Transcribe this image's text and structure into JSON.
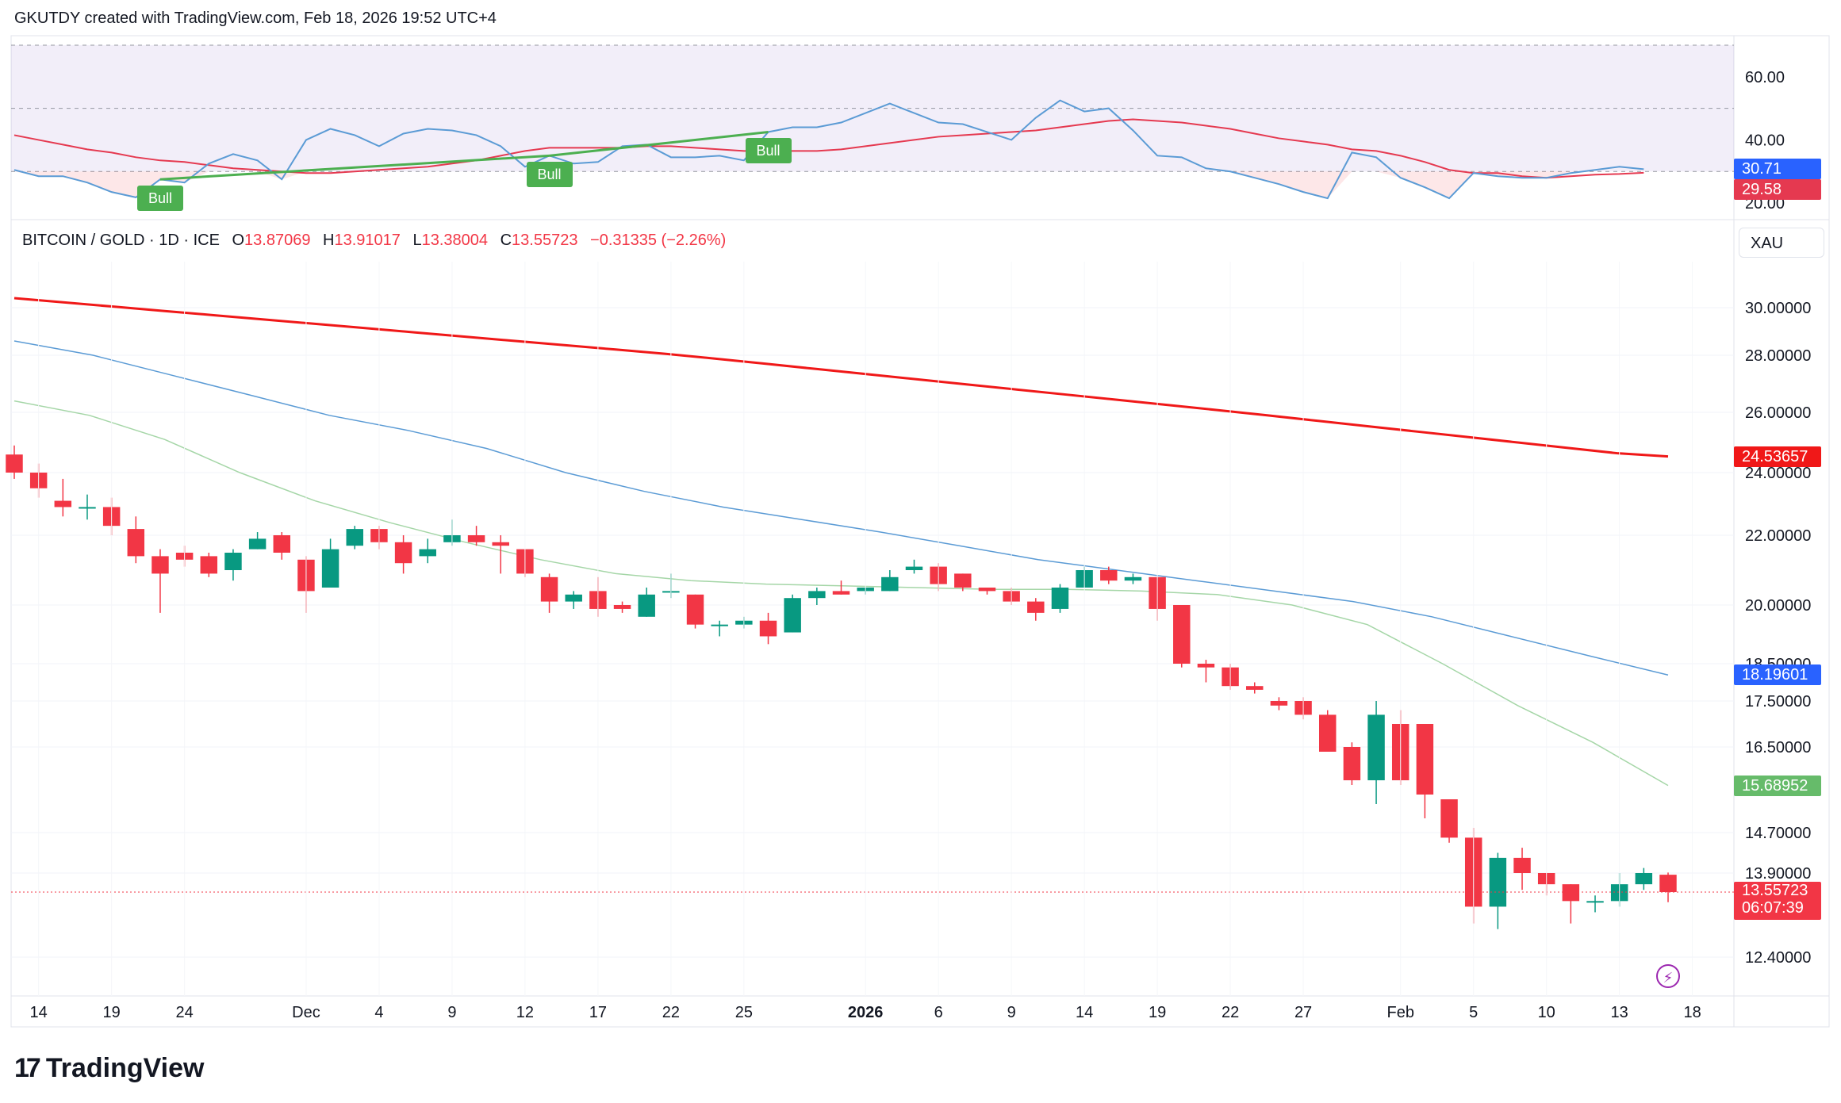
{
  "header": {
    "credit": "GKUTDY created with TradingView.com, Feb 18, 2026 19:52 UTC+4"
  },
  "ohlc": {
    "symbol": "BITCOIN / GOLD · 1D · ICE",
    "o_label": "O",
    "o": "13.87069",
    "h_label": "H",
    "h": "13.91017",
    "l_label": "L",
    "l": "13.38004",
    "c_label": "C",
    "c": "13.55723",
    "change": "−0.31335 (−2.26%)"
  },
  "symbol_box": "XAU",
  "logo": {
    "mark": "17",
    "text": "TradingView"
  },
  "colors": {
    "up": "#089981",
    "down": "#f23645",
    "ma200": "#f01818",
    "ma100": "#5b9bd5",
    "ma50": "#a5d6a7",
    "rsi": "#2962ff",
    "rsi_ma": "#e53950",
    "bull": "#4caf50"
  },
  "chart_data": [
    {
      "type": "line",
      "title": "RSI",
      "ylim": [
        16,
        73
      ],
      "y_ticks": [
        "60.00",
        "40.00",
        "20.00"
      ],
      "band": [
        30,
        70
      ],
      "series": [
        {
          "name": "RSI",
          "value_label": "30.71",
          "values": [
            30.5,
            28.5,
            28.5,
            26.5,
            23.5,
            21.8,
            27.5,
            26.5,
            32.5,
            35.5,
            33.5,
            27.5,
            40,
            43.5,
            41.5,
            38,
            42,
            43.5,
            43,
            41.5,
            38,
            31.5,
            35,
            32.5,
            33,
            38,
            38.5,
            34.5,
            34.5,
            35,
            33.5,
            42.5,
            44,
            44,
            45.5,
            48.5,
            51.5,
            48.5,
            45.5,
            45,
            42.5,
            40,
            47,
            52.5,
            49,
            50,
            43,
            35,
            34.5,
            31,
            30,
            28,
            26,
            23.5,
            21.5,
            36,
            34.5,
            28,
            25,
            21.5,
            29.5,
            28.5,
            28,
            28,
            29.5,
            30.5,
            31.5,
            30.71
          ]
        },
        {
          "name": "RSI MA",
          "value_label": "29.58",
          "values": [
            41.5,
            40,
            38.5,
            37,
            36,
            34.5,
            33.5,
            33,
            32,
            31,
            30.5,
            30,
            29.5,
            29.5,
            30,
            30.5,
            31,
            31.5,
            32.5,
            33.5,
            35,
            36.5,
            37.5,
            37.5,
            37.5,
            37.5,
            38,
            38,
            37.5,
            37,
            36.5,
            36.5,
            36.5,
            36.5,
            37,
            38,
            39,
            40,
            41,
            41.5,
            42,
            42.5,
            43,
            44,
            45,
            46,
            46.5,
            46,
            45.5,
            44.5,
            43.5,
            42,
            40.5,
            39.5,
            38.5,
            37,
            36.5,
            35,
            33,
            30.5,
            29.5,
            29.5,
            28.5,
            28,
            28.5,
            29,
            29.2,
            29.58
          ]
        }
      ],
      "annotations": [
        {
          "label": "Bull",
          "index": 6
        },
        {
          "label": "Bull",
          "index": 22
        },
        {
          "label": "Bull",
          "index": 31
        }
      ]
    },
    {
      "type": "candlestick",
      "title": "BITCOIN / GOLD · 1D · ICE",
      "y_ticks": [
        "30.00000",
        "28.00000",
        "26.00000",
        "24.00000",
        "22.00000",
        "20.00000",
        "18.50000",
        "17.50000",
        "16.50000",
        "14.70000",
        "13.90000",
        "12.40000"
      ],
      "y_tick_values": [
        30,
        28,
        26,
        24,
        22,
        20,
        18.5,
        17.5,
        16.5,
        14.7,
        13.9,
        12.4
      ],
      "x_ticks": [
        "14",
        "19",
        "24",
        "Dec",
        "4",
        "9",
        "12",
        "17",
        "22",
        "25",
        "2026",
        "6",
        "9",
        "14",
        "19",
        "22",
        "27",
        "Feb",
        "5",
        "10",
        "13",
        "18"
      ],
      "x_tick_index": [
        1,
        4,
        7,
        12,
        15,
        18,
        21,
        24,
        27,
        30,
        35,
        38,
        41,
        44,
        47,
        50,
        53,
        57,
        60,
        63,
        66,
        69
      ],
      "candles": [
        {
          "o": 24.6,
          "h": 24.9,
          "c": 24.0,
          "l": 23.8
        },
        {
          "o": 24.0,
          "h": 24.3,
          "c": 23.5,
          "l": 23.2
        },
        {
          "o": 23.1,
          "h": 23.8,
          "c": 22.9,
          "l": 22.6
        },
        {
          "o": 22.9,
          "h": 23.3,
          "c": 22.9,
          "l": 22.5
        },
        {
          "o": 22.9,
          "h": 23.2,
          "c": 22.3,
          "l": 22.0
        },
        {
          "o": 22.2,
          "h": 22.6,
          "c": 21.4,
          "l": 21.2
        },
        {
          "o": 21.4,
          "h": 21.6,
          "c": 20.9,
          "l": 19.8
        },
        {
          "o": 21.5,
          "h": 21.7,
          "c": 21.3,
          "l": 21.1
        },
        {
          "o": 21.4,
          "h": 21.5,
          "c": 20.9,
          "l": 20.8
        },
        {
          "o": 21.0,
          "h": 21.6,
          "c": 21.5,
          "l": 20.7
        },
        {
          "o": 21.6,
          "h": 22.1,
          "c": 21.9,
          "l": 21.6
        },
        {
          "o": 22.0,
          "h": 22.1,
          "c": 21.5,
          "l": 21.3
        },
        {
          "o": 21.3,
          "h": 21.4,
          "c": 20.4,
          "l": 19.8
        },
        {
          "o": 20.5,
          "h": 21.9,
          "c": 21.6,
          "l": 20.5
        },
        {
          "o": 21.7,
          "h": 22.3,
          "c": 22.2,
          "l": 21.6
        },
        {
          "o": 22.2,
          "h": 22.3,
          "c": 21.8,
          "l": 21.6
        },
        {
          "o": 21.8,
          "h": 22.0,
          "c": 21.2,
          "l": 20.9
        },
        {
          "o": 21.4,
          "h": 21.9,
          "c": 21.6,
          "l": 21.2
        },
        {
          "o": 21.8,
          "h": 22.5,
          "c": 22.0,
          "l": 21.7
        },
        {
          "o": 22.0,
          "h": 22.3,
          "c": 21.8,
          "l": 21.7
        },
        {
          "o": 21.8,
          "h": 22.0,
          "c": 21.7,
          "l": 20.9
        },
        {
          "o": 21.6,
          "h": 21.6,
          "c": 20.9,
          "l": 20.8
        },
        {
          "o": 20.8,
          "h": 20.9,
          "c": 20.1,
          "l": 19.8
        },
        {
          "o": 20.1,
          "h": 20.4,
          "c": 20.3,
          "l": 19.9
        },
        {
          "o": 20.4,
          "h": 20.8,
          "c": 19.9,
          "l": 19.7
        },
        {
          "o": 20.0,
          "h": 20.1,
          "c": 19.9,
          "l": 19.8
        },
        {
          "o": 19.7,
          "h": 20.5,
          "c": 20.3,
          "l": 19.7
        },
        {
          "o": 20.4,
          "h": 20.9,
          "c": 20.4,
          "l": 20.2
        },
        {
          "o": 20.3,
          "h": 20.3,
          "c": 19.5,
          "l": 19.4
        },
        {
          "o": 19.5,
          "h": 19.6,
          "c": 19.5,
          "l": 19.2
        },
        {
          "o": 19.5,
          "h": 19.7,
          "c": 19.6,
          "l": 19.4
        },
        {
          "o": 19.6,
          "h": 19.8,
          "c": 19.2,
          "l": 19.0
        },
        {
          "o": 19.3,
          "h": 20.3,
          "c": 20.2,
          "l": 19.3
        },
        {
          "o": 20.2,
          "h": 20.5,
          "c": 20.4,
          "l": 20.0
        },
        {
          "o": 20.4,
          "h": 20.7,
          "c": 20.3,
          "l": 20.3
        },
        {
          "o": 20.4,
          "h": 20.5,
          "c": 20.5,
          "l": 20.3
        },
        {
          "o": 20.4,
          "h": 21.0,
          "c": 20.8,
          "l": 20.4
        },
        {
          "o": 21.0,
          "h": 21.3,
          "c": 21.1,
          "l": 20.9
        },
        {
          "o": 21.1,
          "h": 21.2,
          "c": 20.6,
          "l": 20.4
        },
        {
          "o": 20.9,
          "h": 20.9,
          "c": 20.5,
          "l": 20.4
        },
        {
          "o": 20.5,
          "h": 20.5,
          "c": 20.4,
          "l": 20.3
        },
        {
          "o": 20.4,
          "h": 20.5,
          "c": 20.1,
          "l": 20.0
        },
        {
          "o": 20.1,
          "h": 20.2,
          "c": 19.8,
          "l": 19.6
        },
        {
          "o": 19.9,
          "h": 20.6,
          "c": 20.5,
          "l": 19.8
        },
        {
          "o": 20.5,
          "h": 21.1,
          "c": 21.0,
          "l": 20.5
        },
        {
          "o": 21.0,
          "h": 21.1,
          "c": 20.7,
          "l": 20.6
        },
        {
          "o": 20.7,
          "h": 20.9,
          "c": 20.8,
          "l": 20.6
        },
        {
          "o": 20.8,
          "h": 20.8,
          "c": 19.9,
          "l": 19.6
        },
        {
          "o": 20.0,
          "h": 20.0,
          "c": 18.5,
          "l": 18.4
        },
        {
          "o": 18.5,
          "h": 18.6,
          "c": 18.4,
          "l": 18.0
        },
        {
          "o": 18.4,
          "h": 18.5,
          "c": 17.9,
          "l": 17.8
        },
        {
          "o": 17.9,
          "h": 18.0,
          "c": 17.8,
          "l": 17.7
        },
        {
          "o": 17.5,
          "h": 17.6,
          "c": 17.4,
          "l": 17.3
        },
        {
          "o": 17.5,
          "h": 17.6,
          "c": 17.2,
          "l": 17.1
        },
        {
          "o": 17.2,
          "h": 17.3,
          "c": 16.4,
          "l": 16.4
        },
        {
          "o": 16.5,
          "h": 16.6,
          "c": 15.8,
          "l": 15.7
        },
        {
          "o": 15.8,
          "h": 17.5,
          "c": 17.2,
          "l": 15.3
        },
        {
          "o": 17.0,
          "h": 17.3,
          "c": 15.8,
          "l": 15.7
        },
        {
          "o": 17.0,
          "h": 17.0,
          "c": 15.5,
          "l": 15.0
        },
        {
          "o": 15.4,
          "h": 15.4,
          "c": 14.6,
          "l": 14.5
        },
        {
          "o": 14.6,
          "h": 14.8,
          "c": 13.3,
          "l": 13.0
        },
        {
          "o": 13.3,
          "h": 14.3,
          "c": 14.2,
          "l": 12.9
        },
        {
          "o": 14.2,
          "h": 14.4,
          "c": 13.9,
          "l": 13.6
        },
        {
          "o": 13.9,
          "h": 13.9,
          "c": 13.7,
          "l": 13.5
        },
        {
          "o": 13.7,
          "h": 13.7,
          "c": 13.4,
          "l": 13.0
        },
        {
          "o": 13.4,
          "h": 13.5,
          "c": 13.4,
          "l": 13.2
        },
        {
          "o": 13.4,
          "h": 13.9,
          "c": 13.7,
          "l": 13.3
        },
        {
          "o": 13.7,
          "h": 14.0,
          "c": 13.9,
          "l": 13.6
        },
        {
          "o": 13.87,
          "h": 13.91,
          "c": 13.56,
          "l": 13.38
        }
      ],
      "series": [
        {
          "name": "MA 200",
          "value_label": "24.53657",
          "from": 0,
          "values": [
            30.4,
            30.22,
            30.04,
            29.86,
            29.68,
            29.5,
            29.32,
            29.14,
            28.96,
            28.78,
            28.6,
            28.42,
            28.24,
            28.06,
            27.88,
            27.7,
            27.52,
            27.34,
            27.16,
            26.98,
            26.8,
            26.62,
            26.44,
            26.26,
            26.08,
            25.9,
            25.72,
            25.54,
            25.36,
            25.18,
            25.0,
            24.82,
            24.64,
            24.53657
          ]
        },
        {
          "name": "MA 100",
          "value_label": "18.19601",
          "from": 0,
          "values": [
            28.6,
            28.0,
            27.3,
            26.6,
            25.9,
            25.4,
            24.8,
            24.0,
            23.4,
            22.9,
            22.5,
            22.1,
            21.7,
            21.3,
            21.0,
            20.7,
            20.4,
            20.1,
            19.7,
            19.2,
            18.7,
            18.19601
          ]
        },
        {
          "name": "MA 50",
          "value_label": "15.68952",
          "from": 0,
          "values": [
            26.4,
            25.9,
            25.1,
            24.0,
            23.1,
            22.4,
            21.8,
            21.3,
            20.9,
            20.7,
            20.6,
            20.55,
            20.5,
            20.45,
            20.45,
            20.4,
            20.3,
            20.0,
            19.5,
            18.5,
            17.4,
            16.6,
            15.68952
          ]
        }
      ],
      "last": {
        "value_label": "13.55723",
        "countdown": "06:07:39"
      }
    }
  ]
}
